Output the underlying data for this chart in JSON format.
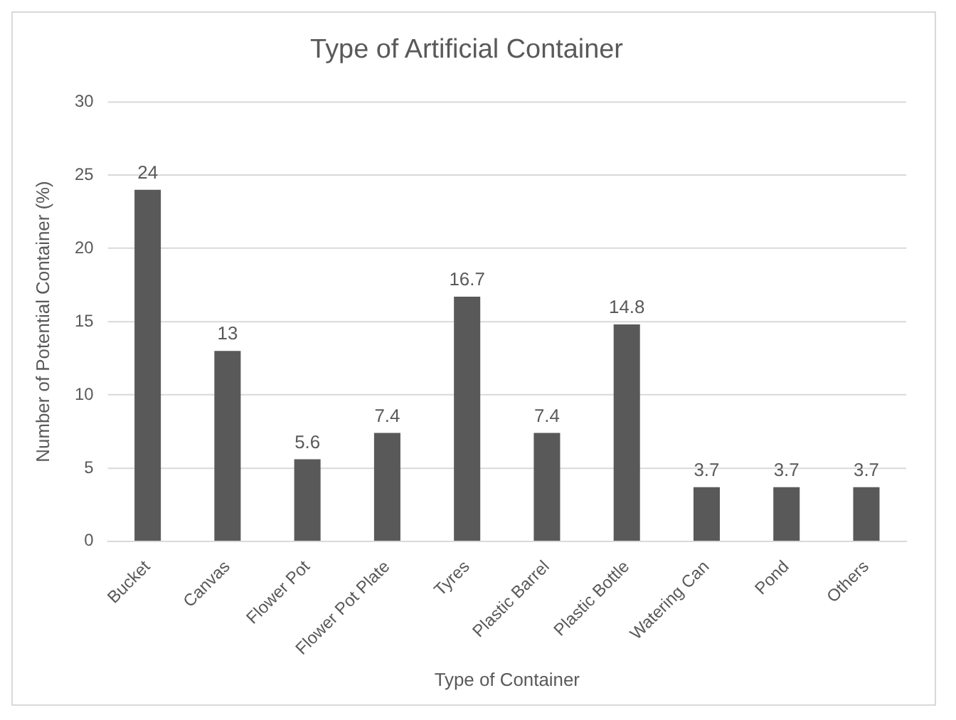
{
  "chart_data": {
    "type": "bar",
    "title": "Type of Artificial Container",
    "xlabel": "Type of Container",
    "ylabel": "Number of Potential Container (%)",
    "categories": [
      "Bucket",
      "Canvas",
      "Flower Pot",
      "Flower Pot Plate",
      "Tyres",
      "Plastic Barrel",
      "Plastic Bottle",
      "Watering Can",
      "Pond",
      "Others"
    ],
    "values": [
      24,
      13,
      5.6,
      7.4,
      16.7,
      7.4,
      14.8,
      3.7,
      3.7,
      3.7
    ],
    "color": "#595959",
    "ylim": [
      0,
      30
    ],
    "yticks": [
      0,
      5,
      10,
      15,
      20,
      25,
      30
    ],
    "grid": "y",
    "data_labels": true
  }
}
